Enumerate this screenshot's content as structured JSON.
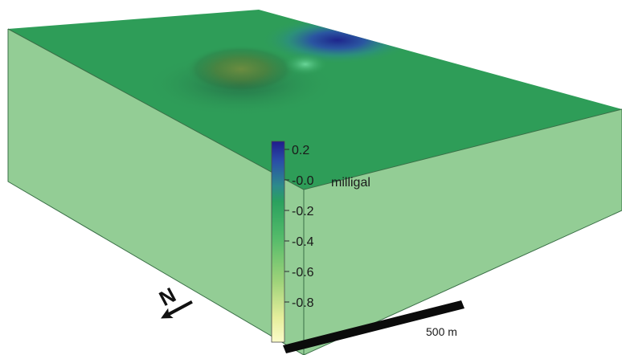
{
  "colorbar": {
    "unit": "milligal",
    "ticks": [
      "0.2",
      "-0.0",
      "-0.2",
      "-0.4",
      "-0.6",
      "-0.8"
    ],
    "colormap": [
      "#1f1c8c",
      "#2a4fa8",
      "#2c8a8c",
      "#2aa15e",
      "#54bb6a",
      "#9fd37a",
      "#e6ee9c",
      "#fbfbc9"
    ]
  },
  "scale_bar": {
    "label": "500 m"
  },
  "north_arrow": {
    "letter": "N"
  },
  "colors": {
    "top_surface": "#2e9d58",
    "side_face": "#93cd95",
    "edge_line": "#3a6f47"
  }
}
